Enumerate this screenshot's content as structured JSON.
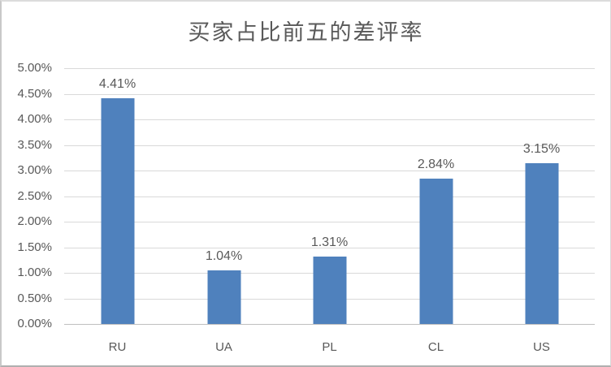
{
  "chart_data": {
    "type": "bar",
    "title": "买家占比前五的差评率",
    "categories": [
      "RU",
      "UA",
      "PL",
      "CL",
      "US"
    ],
    "values": [
      4.41,
      1.04,
      1.31,
      2.84,
      3.15
    ],
    "data_labels": [
      "4.41%",
      "1.04%",
      "1.31%",
      "2.84%",
      "3.15%"
    ],
    "y_tick_labels": [
      "5.00%",
      "4.50%",
      "4.00%",
      "3.50%",
      "3.00%",
      "2.50%",
      "2.00%",
      "1.50%",
      "1.00%",
      "0.50%",
      "0.00%"
    ],
    "ylim": [
      0,
      5
    ],
    "y_step": 0.5,
    "xlabel": "",
    "ylabel": "",
    "grid": "horizontal",
    "legend": "none",
    "bar_color": "#4f81bd",
    "gridline_color": "#d9d9d9",
    "axis_line_color": "#bfbfbf",
    "text_color": "#595959",
    "background_color": "#ffffff"
  }
}
